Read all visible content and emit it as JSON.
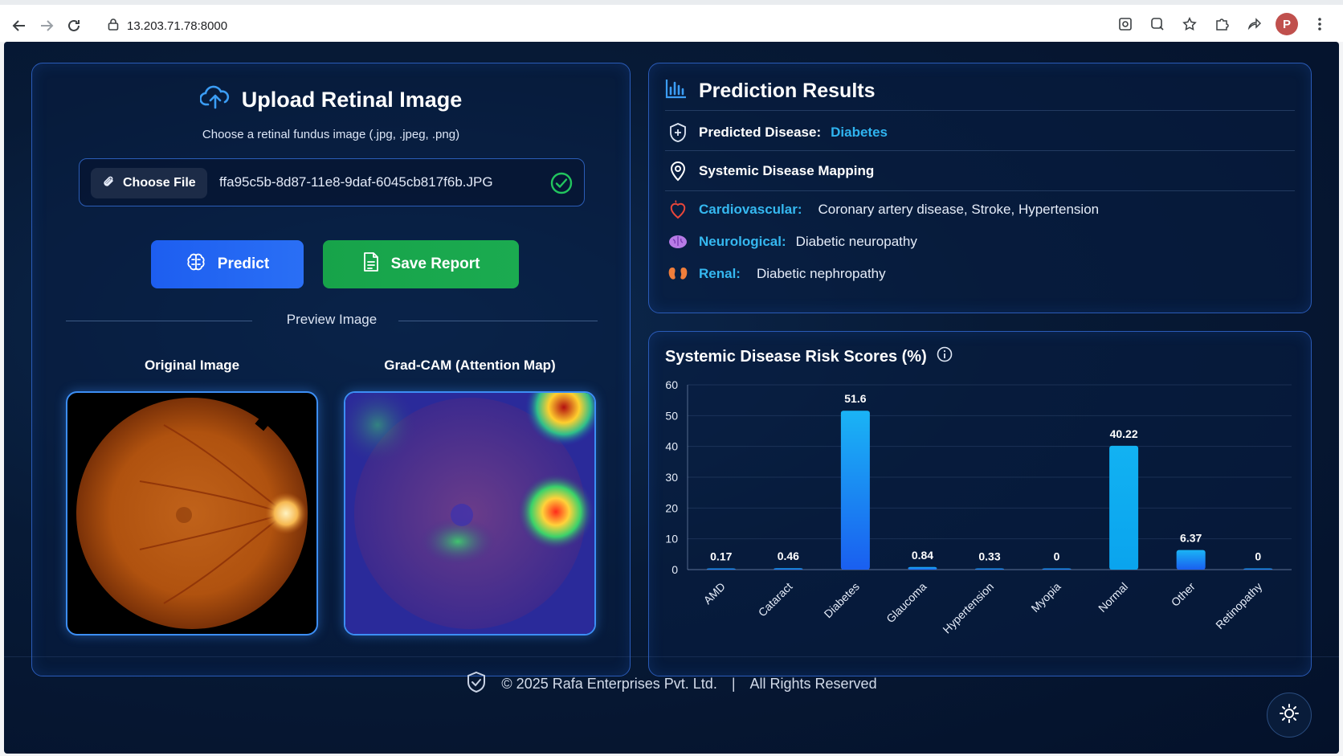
{
  "browser": {
    "url": "13.203.71.78:8000",
    "profile_initial": "P"
  },
  "upload": {
    "title": "Upload Retinal Image",
    "subtitle": "Choose a retinal fundus image (.jpg, .jpeg, .png)",
    "choose_label": "Choose File",
    "filename": "ffa95c5b-8d87-11e8-9daf-6045cb817f6b.JPG",
    "predict_label": "Predict",
    "save_label": "Save Report",
    "preview_label": "Preview Image",
    "original_label": "Original Image",
    "gradcam_label": "Grad-CAM (Attention Map)"
  },
  "results": {
    "title": "Prediction Results",
    "predicted_label": "Predicted Disease:",
    "predicted_value": "Diabetes",
    "mapping_label": "Systemic Disease Mapping",
    "cardio_label": "Cardiovascular:",
    "cardio_value": "Coronary artery disease, Stroke, Hypertension",
    "neuro_label": "Neurological:",
    "neuro_value": "Diabetic neuropathy",
    "renal_label": "Renal:",
    "renal_value": "Diabetic nephropathy"
  },
  "chart_data": {
    "type": "bar",
    "title": "Systemic Disease Risk Scores (%)",
    "categories": [
      "AMD",
      "Cataract",
      "Diabetes",
      "Glaucoma",
      "Hypertension",
      "Myopia",
      "Normal",
      "Other",
      "Retinopathy"
    ],
    "values": [
      0.17,
      0.46,
      51.6,
      0.84,
      0.33,
      0,
      40.22,
      6.37,
      0
    ],
    "value_labels": [
      "0.17",
      "0.46",
      "51.6",
      "0.84",
      "0.33",
      "0",
      "40.22",
      "6.37",
      "0"
    ],
    "ylim": [
      0,
      60
    ],
    "yticks": [
      "0",
      "10",
      "20",
      "30",
      "40",
      "50",
      "60"
    ],
    "grid": true
  },
  "footer": {
    "copyright": "© 2025 Rafa Enterprises Pvt. Ltd.",
    "separator": "|",
    "rights": "All Rights Reserved"
  },
  "colors": {
    "accent_blue": "#1d5ef0",
    "accent_green": "#17a34a",
    "cyan": "#2fb4f0",
    "panel_border": "#2a5bb8"
  },
  "icons": [
    "back-icon",
    "forward-icon",
    "reload-icon",
    "lock-icon",
    "cloud-upload-icon",
    "paperclip-icon",
    "check-circle-icon",
    "brain-icon",
    "document-icon",
    "bar-chart-icon",
    "medical-plus-icon",
    "location-pin-icon",
    "heart-icon",
    "brain-purple-icon",
    "kidney-icon",
    "info-icon",
    "shield-icon",
    "sun-icon"
  ]
}
